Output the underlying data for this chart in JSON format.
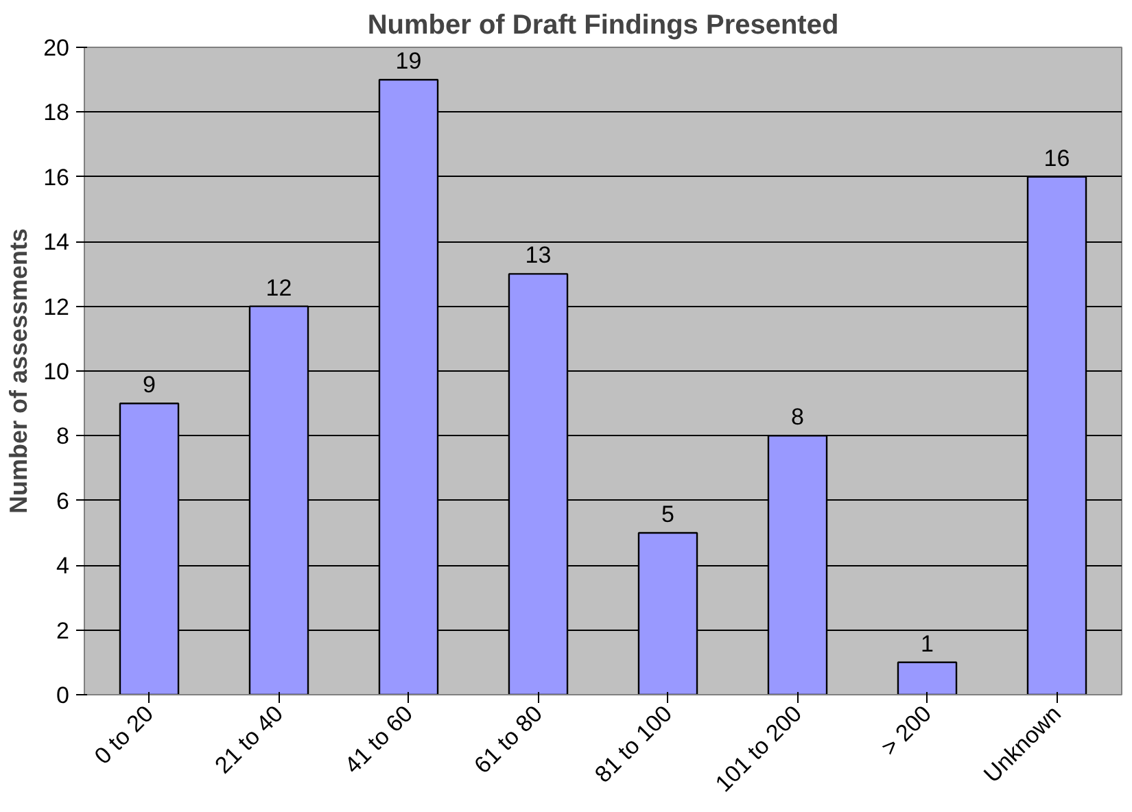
{
  "chart_data": {
    "type": "bar",
    "title": "Number of Draft Findings Presented",
    "ylabel": "Number of assessments",
    "categories": [
      "0 to 20",
      "21 to 40",
      "41 to 60",
      "61 to 80",
      "81 to 100",
      "101 to 200",
      "> 200",
      "Unknown"
    ],
    "values": [
      9,
      12,
      19,
      13,
      5,
      8,
      1,
      16
    ],
    "color": "#9999ff",
    "ylim": [
      0,
      20
    ],
    "yticks": [
      0,
      2,
      4,
      6,
      8,
      10,
      12,
      14,
      16,
      18,
      20
    ],
    "grid": "y",
    "data_labels": true
  }
}
